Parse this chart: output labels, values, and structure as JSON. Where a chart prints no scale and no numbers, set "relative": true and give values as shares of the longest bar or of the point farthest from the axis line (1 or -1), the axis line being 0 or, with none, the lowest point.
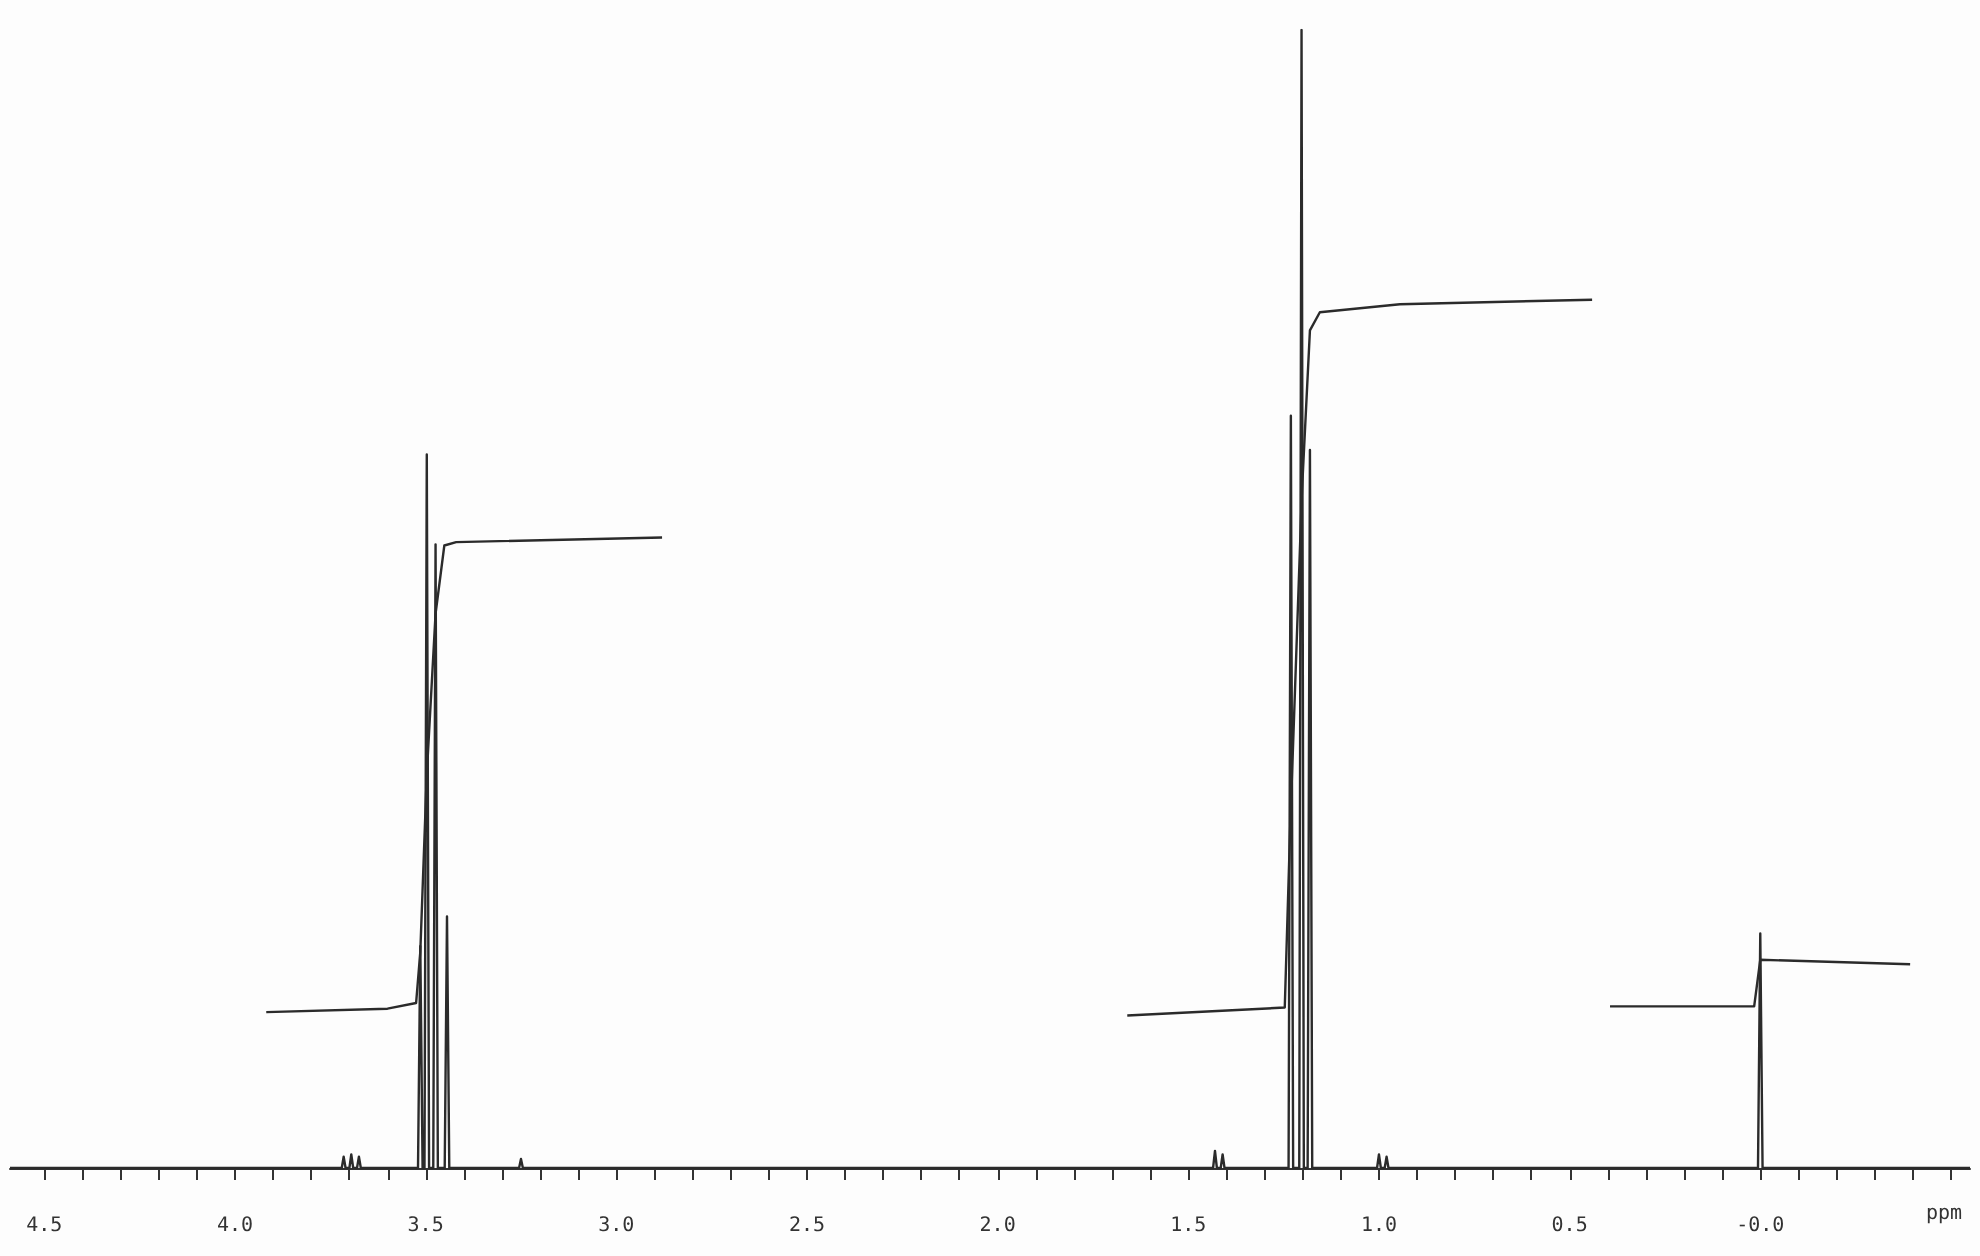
{
  "chart_data": {
    "type": "line",
    "relative": true,
    "xlabel": "ppm",
    "marker": "none",
    "line_style": "solid",
    "xlim": [
      4.59,
      -0.55
    ],
    "xticks": [
      {
        "value": 4.5,
        "label": "4.5"
      },
      {
        "value": 4.4,
        "label": null
      },
      {
        "value": 4.3,
        "label": null
      },
      {
        "value": 4.2,
        "label": null
      },
      {
        "value": 4.1,
        "label": null
      },
      {
        "value": 4.0,
        "label": "4.0"
      },
      {
        "value": 3.9,
        "label": null
      },
      {
        "value": 3.8,
        "label": null
      },
      {
        "value": 3.7,
        "label": null
      },
      {
        "value": 3.6,
        "label": null
      },
      {
        "value": 3.5,
        "label": "3.5"
      },
      {
        "value": 3.4,
        "label": null
      },
      {
        "value": 3.3,
        "label": null
      },
      {
        "value": 3.2,
        "label": null
      },
      {
        "value": 3.1,
        "label": null
      },
      {
        "value": 3.0,
        "label": "3.0"
      },
      {
        "value": 2.9,
        "label": null
      },
      {
        "value": 2.8,
        "label": null
      },
      {
        "value": 2.7,
        "label": null
      },
      {
        "value": 2.6,
        "label": null
      },
      {
        "value": 2.5,
        "label": "2.5"
      },
      {
        "value": 2.4,
        "label": null
      },
      {
        "value": 2.3,
        "label": null
      },
      {
        "value": 2.2,
        "label": null
      },
      {
        "value": 2.1,
        "label": null
      },
      {
        "value": 2.0,
        "label": "2.0"
      },
      {
        "value": 1.9,
        "label": null
      },
      {
        "value": 1.8,
        "label": null
      },
      {
        "value": 1.7,
        "label": null
      },
      {
        "value": 1.6,
        "label": null
      },
      {
        "value": 1.5,
        "label": "1.5"
      },
      {
        "value": 1.4,
        "label": null
      },
      {
        "value": 1.3,
        "label": null
      },
      {
        "value": 1.2,
        "label": null
      },
      {
        "value": 1.1,
        "label": null
      },
      {
        "value": 1.0,
        "label": "1.0"
      },
      {
        "value": 0.9,
        "label": null
      },
      {
        "value": 0.8,
        "label": null
      },
      {
        "value": 0.7,
        "label": null
      },
      {
        "value": 0.6,
        "label": null
      },
      {
        "value": 0.5,
        "label": "0.5"
      },
      {
        "value": 0.4,
        "label": null
      },
      {
        "value": 0.3,
        "label": null
      },
      {
        "value": 0.2,
        "label": null
      },
      {
        "value": 0.1,
        "label": null
      },
      {
        "value": 0,
        "label": "-0.0"
      },
      {
        "value": -0.1,
        "label": null
      },
      {
        "value": -0.2,
        "label": null
      },
      {
        "value": -0.3,
        "label": null
      },
      {
        "value": -0.4,
        "label": null
      },
      {
        "value": -0.5,
        "label": null
      }
    ],
    "series": [
      {
        "color": "#2b2b2b",
        "x": [
          4.59,
          3.72,
          3.715,
          3.71,
          3.7,
          3.695,
          3.69,
          3.68,
          3.675,
          3.67,
          3.52,
          3.514,
          3.508,
          3.503,
          3.497,
          3.491,
          3.48,
          3.474,
          3.468,
          3.45,
          3.444,
          3.438,
          3.255,
          3.25,
          3.245,
          1.435,
          1.43,
          1.425,
          1.415,
          1.41,
          1.405,
          1.237,
          1.231,
          1.225,
          1.209,
          1.203,
          1.197,
          1.187,
          1.181,
          1.175,
          1.005,
          1.0,
          0.995,
          0.985,
          0.98,
          0.975,
          0.006,
          0.0,
          -0.006,
          -0.55
        ],
        "values": [
          0,
          0,
          0.01,
          0,
          0,
          0.012,
          0,
          0,
          0.01,
          0,
          0,
          0.195,
          0,
          0,
          0.627,
          0,
          0,
          0.548,
          0,
          0,
          0.221,
          0,
          0,
          0.008,
          0,
          0,
          0.015,
          0,
          0,
          0.012,
          0,
          0,
          0.661,
          0,
          0,
          1,
          0,
          0,
          0.631,
          0,
          0,
          0.012,
          0,
          0,
          0.01,
          0,
          0,
          0.206,
          0,
          0
        ]
      },
      {
        "color": "#2b2b2b",
        "x": [
          3.918,
          3.6,
          3.525,
          3.514,
          3.497,
          3.474,
          3.451,
          3.42,
          2.88
        ],
        "values": [
          0.137,
          0.14,
          0.145,
          0.19,
          0.346,
          0.487,
          0.547,
          0.55,
          0.554
        ]
      },
      {
        "color": "#2b2b2b",
        "x": [
          1.66,
          1.247,
          1.233,
          1.202,
          1.181,
          1.155,
          0.945,
          0.441
        ],
        "values": [
          0.134,
          0.141,
          0.297,
          0.594,
          0.736,
          0.752,
          0.759,
          0.763
        ]
      },
      {
        "color": "#2b2b2b",
        "x": [
          0.394,
          0.016,
          0.0,
          -0.393
        ],
        "values": [
          0.142,
          0.142,
          0.183,
          0.179
        ]
      }
    ]
  }
}
